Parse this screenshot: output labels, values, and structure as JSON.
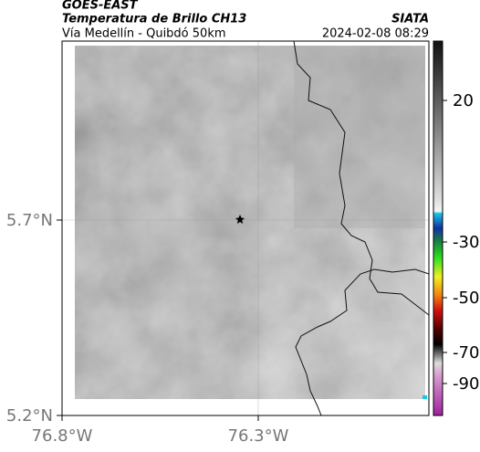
{
  "header": {
    "satellite": "GOES-EAST",
    "product": "Temperatura de Brillo CH13",
    "region": "Vía Medellín - Quibdó 50km",
    "source": "SIATA",
    "datetime": "2024-02-08 08:29"
  },
  "axes": {
    "latitude_labels": [
      "5.7°N",
      "5.2°N"
    ],
    "longitude_labels": [
      "76.8°W",
      "76.3°W"
    ]
  },
  "colorbar": {
    "tick_labels": [
      20,
      -30,
      -50,
      -70,
      -90
    ]
  }
}
